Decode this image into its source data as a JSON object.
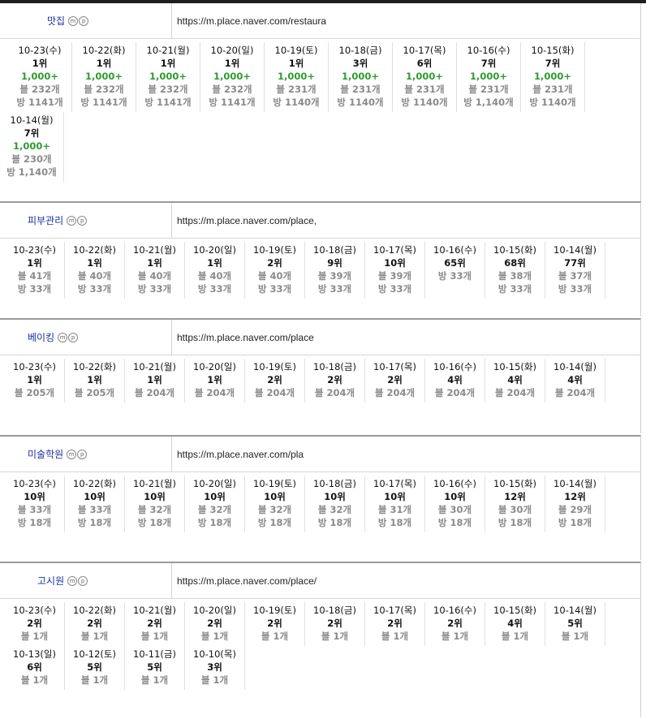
{
  "sections": [
    {
      "keyword": "맛집",
      "url": "https://m.place.naver.com/restaura",
      "entries": [
        {
          "date": "10-23(수)",
          "rank": "1위",
          "vol": "1,000+",
          "blog": "블 232개",
          "bang": "방 1141개"
        },
        {
          "date": "10-22(화)",
          "rank": "1위",
          "vol": "1,000+",
          "blog": "블 232개",
          "bang": "방 1141개"
        },
        {
          "date": "10-21(월)",
          "rank": "1위",
          "vol": "1,000+",
          "blog": "블 232개",
          "bang": "방 1141개"
        },
        {
          "date": "10-20(일)",
          "rank": "1위",
          "vol": "1,000+",
          "blog": "블 232개",
          "bang": "방 1141개"
        },
        {
          "date": "10-19(토)",
          "rank": "1위",
          "vol": "1,000+",
          "blog": "블 231개",
          "bang": "방 1140개"
        },
        {
          "date": "10-18(금)",
          "rank": "3위",
          "vol": "1,000+",
          "blog": "블 231개",
          "bang": "방 1140개"
        },
        {
          "date": "10-17(목)",
          "rank": "6위",
          "vol": "1,000+",
          "blog": "블 231개",
          "bang": "방 1140개"
        },
        {
          "date": "10-16(수)",
          "rank": "7위",
          "vol": "1,000+",
          "blog": "블 231개",
          "bang": "방 1,140개"
        },
        {
          "date": "10-15(화)",
          "rank": "7위",
          "vol": "1,000+",
          "blog": "블 231개",
          "bang": "방 1140개"
        },
        {
          "date": "10-14(월)",
          "rank": "7위",
          "vol": "1,000+",
          "blog": "블 230개",
          "bang": "방 1,140개"
        }
      ]
    },
    {
      "keyword": "피부관리",
      "url": "https://m.place.naver.com/place,",
      "entries": [
        {
          "date": "10-23(수)",
          "rank": "1위",
          "blog": "블 41개",
          "bang": "방 33개"
        },
        {
          "date": "10-22(화)",
          "rank": "1위",
          "blog": "블 40개",
          "bang": "방 33개"
        },
        {
          "date": "10-21(월)",
          "rank": "1위",
          "blog": "블 40개",
          "bang": "방 33개"
        },
        {
          "date": "10-20(일)",
          "rank": "1위",
          "blog": "블 40개",
          "bang": "방 33개"
        },
        {
          "date": "10-19(토)",
          "rank": "2위",
          "blog": "블 40개",
          "bang": "방 33개"
        },
        {
          "date": "10-18(금)",
          "rank": "9위",
          "blog": "블 39개",
          "bang": "방 33개"
        },
        {
          "date": "10-17(목)",
          "rank": "10위",
          "blog": "블 39개",
          "bang": "방 33개"
        },
        {
          "date": "10-16(수)",
          "rank": "65위",
          "blog": "방 33개",
          "bang": ""
        },
        {
          "date": "10-15(화)",
          "rank": "68위",
          "blog": "블 38개",
          "bang": "방 33개"
        },
        {
          "date": "10-14(월)",
          "rank": "77위",
          "blog": "블 37개",
          "bang": "방 33개"
        }
      ]
    },
    {
      "keyword": "베이킹",
      "url": "https://m.place.naver.com/place",
      "entries": [
        {
          "date": "10-23(수)",
          "rank": "1위",
          "blog": "블 205개"
        },
        {
          "date": "10-22(화)",
          "rank": "1위",
          "blog": "블 205개"
        },
        {
          "date": "10-21(월)",
          "rank": "1위",
          "blog": "블 204개"
        },
        {
          "date": "10-20(일)",
          "rank": "1위",
          "blog": "블 204개"
        },
        {
          "date": "10-19(토)",
          "rank": "2위",
          "blog": "블 204개"
        },
        {
          "date": "10-18(금)",
          "rank": "2위",
          "blog": "블 204개"
        },
        {
          "date": "10-17(목)",
          "rank": "2위",
          "blog": "블 204개"
        },
        {
          "date": "10-16(수)",
          "rank": "4위",
          "blog": "블 204개"
        },
        {
          "date": "10-15(화)",
          "rank": "4위",
          "blog": "블 204개"
        },
        {
          "date": "10-14(월)",
          "rank": "4위",
          "blog": "블 204개"
        }
      ]
    },
    {
      "keyword": "미술학원",
      "url": "https://m.place.naver.com/pla",
      "entries": [
        {
          "date": "10-23(수)",
          "rank": "10위",
          "blog": "블 33개",
          "bang": "방 18개"
        },
        {
          "date": "10-22(화)",
          "rank": "10위",
          "blog": "블 33개",
          "bang": "방 18개"
        },
        {
          "date": "10-21(월)",
          "rank": "10위",
          "blog": "블 32개",
          "bang": "방 18개"
        },
        {
          "date": "10-20(일)",
          "rank": "10위",
          "blog": "블 32개",
          "bang": "방 18개"
        },
        {
          "date": "10-19(토)",
          "rank": "10위",
          "blog": "블 32개",
          "bang": "방 18개"
        },
        {
          "date": "10-18(금)",
          "rank": "10위",
          "blog": "블 32개",
          "bang": "방 18개"
        },
        {
          "date": "10-17(목)",
          "rank": "10위",
          "blog": "블 31개",
          "bang": "방 18개"
        },
        {
          "date": "10-16(수)",
          "rank": "10위",
          "blog": "블 30개",
          "bang": "방 18개"
        },
        {
          "date": "10-15(화)",
          "rank": "12위",
          "blog": "블 30개",
          "bang": "방 18개"
        },
        {
          "date": "10-14(월)",
          "rank": "12위",
          "blog": "블 29개",
          "bang": "방 18개"
        }
      ]
    },
    {
      "keyword": "고시원",
      "url": "https://m.place.naver.com/place/",
      "entries": [
        {
          "date": "10-23(수)",
          "rank": "2위",
          "blog": "블 1개"
        },
        {
          "date": "10-22(화)",
          "rank": "2위",
          "blog": "블 1개"
        },
        {
          "date": "10-21(월)",
          "rank": "2위",
          "blog": "블 1개"
        },
        {
          "date": "10-20(일)",
          "rank": "2위",
          "blog": "블 1개"
        },
        {
          "date": "10-19(토)",
          "rank": "2위",
          "blog": "블 1개"
        },
        {
          "date": "10-18(금)",
          "rank": "2위",
          "blog": "블 1개"
        },
        {
          "date": "10-17(목)",
          "rank": "2위",
          "blog": "블 1개"
        },
        {
          "date": "10-16(수)",
          "rank": "2위",
          "blog": "블 1개"
        },
        {
          "date": "10-15(화)",
          "rank": "4위",
          "blog": "블 1개"
        },
        {
          "date": "10-14(월)",
          "rank": "5위",
          "blog": "블 1개"
        },
        {
          "date": "10-13(일)",
          "rank": "6위",
          "blog": "블 1개"
        },
        {
          "date": "10-12(토)",
          "rank": "5위",
          "blog": "블 1개"
        },
        {
          "date": "10-11(금)",
          "rank": "5위",
          "blog": "블 1개"
        },
        {
          "date": "10-10(목)",
          "rank": "3위",
          "blog": "블 1개"
        }
      ]
    }
  ],
  "badges": {
    "m": "m",
    "p": "p"
  }
}
